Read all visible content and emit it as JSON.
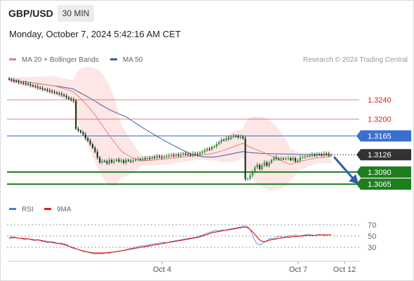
{
  "header": {
    "symbol": "GBP/USD",
    "timeframe": "30 MIN",
    "datetime": "Monday, October 7, 2024 5:42:16 AM CET"
  },
  "legend": {
    "ma20_label": "MA 20 + Bollinger Bands",
    "ma50_label": "MA 50",
    "rsi_label": "RSI",
    "rsi_ma_label": "9MA",
    "credit": "Research © 2024 Trading Central"
  },
  "colors": {
    "ma20": "#e88080",
    "ma50": "#3f5f9f",
    "bollinger_fill": "#fde3e3",
    "candle_up": "#3a8a3a",
    "candle_down": "#1a3a1a",
    "resistance": "#d82020",
    "support": "#1e7e1e",
    "pivot": "#3a6fd0",
    "current": "#333333",
    "forecast_arrow": "#2e5fa8",
    "rsi": "#4a7fd8",
    "rsi_ma": "#d82020"
  },
  "chart_data": [
    {
      "type": "candlestick",
      "title": "GBP/USD 30 MIN",
      "x_ticks": [
        "Oct 4",
        "Oct 7",
        "Oct 12"
      ],
      "ylim": [
        1.3036,
        1.3307
      ],
      "grid": false,
      "legend_position": "top-left",
      "levels": [
        {
          "label": "1.3240",
          "value": 1.324,
          "kind": "resistance"
        },
        {
          "label": "1.3200",
          "value": 1.32,
          "kind": "resistance"
        },
        {
          "label": "1.3165",
          "value": 1.3165,
          "kind": "pivot"
        },
        {
          "label": "1.3126",
          "value": 1.3126,
          "kind": "current"
        },
        {
          "label": "1.3090",
          "value": 1.309,
          "kind": "support"
        },
        {
          "label": "1.3065",
          "value": 1.3065,
          "kind": "support"
        }
      ],
      "forecast": {
        "from": 1.3126,
        "to": 1.3068,
        "direction": "down"
      },
      "closes": [
        1.3282,
        1.328,
        1.3279,
        1.3278,
        1.3276,
        1.3275,
        1.3274,
        1.3273,
        1.3272,
        1.327,
        1.3268,
        1.3267,
        1.3265,
        1.3264,
        1.3262,
        1.3261,
        1.3259,
        1.3258,
        1.3256,
        1.3255,
        1.3253,
        1.3252,
        1.325,
        1.3248,
        1.3245,
        1.3242,
        1.324,
        1.3238,
        1.318,
        1.3176,
        1.3172,
        1.3168,
        1.316,
        1.3155,
        1.3148,
        1.314,
        1.3132,
        1.312,
        1.311,
        1.3113,
        1.3112,
        1.3108,
        1.3115,
        1.311,
        1.3113,
        1.3116,
        1.3112,
        1.3114,
        1.3109,
        1.3115,
        1.3113,
        1.3112,
        1.3114,
        1.3116,
        1.3117,
        1.3115,
        1.3118,
        1.3117,
        1.3119,
        1.3118,
        1.3121,
        1.312,
        1.3123,
        1.3121,
        1.312,
        1.3122,
        1.3123,
        1.3124,
        1.3125,
        1.3124,
        1.3126,
        1.3124,
        1.3126,
        1.3128,
        1.3127,
        1.3126,
        1.3125,
        1.3128,
        1.3127,
        1.3126,
        1.313,
        1.3132,
        1.3135,
        1.3138,
        1.3137,
        1.3142,
        1.3143,
        1.3148,
        1.3152,
        1.3157,
        1.3156,
        1.316,
        1.3159,
        1.3163,
        1.3165,
        1.3164,
        1.3162,
        1.3163,
        1.316,
        1.3075,
        1.3076,
        1.3083,
        1.309,
        1.31,
        1.3105,
        1.3096,
        1.3104,
        1.311,
        1.3103,
        1.3109,
        1.3115,
        1.312,
        1.3118,
        1.3116,
        1.3118,
        1.3117,
        1.3118,
        1.3119,
        1.3115,
        1.3119,
        1.3112,
        1.3114,
        1.312,
        1.3121,
        1.3122,
        1.3123,
        1.3124,
        1.3126,
        1.3124,
        1.3127,
        1.3126,
        1.3125,
        1.3128,
        1.3127,
        1.3125,
        1.3126
      ]
    },
    {
      "type": "line",
      "title": "RSI",
      "y_ticks": [
        70,
        50,
        30
      ],
      "ylim": [
        10,
        80
      ],
      "series": [
        {
          "name": "RSI",
          "values": [
            48,
            49,
            47,
            46,
            45,
            44,
            45,
            43,
            42,
            44,
            41,
            40,
            38,
            40,
            39,
            37,
            38,
            36,
            35,
            30,
            28,
            27,
            25,
            24,
            22,
            20,
            19,
            18,
            19,
            18,
            20,
            19,
            21,
            22,
            23,
            24,
            25,
            27,
            28,
            30,
            31,
            33,
            32,
            34,
            35,
            36,
            37,
            38,
            39,
            38,
            40,
            41,
            42,
            43,
            44,
            45,
            46,
            47,
            48,
            50,
            52,
            54,
            56,
            58,
            60,
            59,
            61,
            60,
            62,
            63,
            64,
            65,
            66,
            68,
            67,
            60,
            45,
            36,
            34,
            38,
            42,
            46,
            45,
            48,
            50,
            47,
            49,
            51,
            50,
            52,
            49,
            51,
            52,
            53,
            52,
            51,
            53,
            52,
            51,
            52,
            52
          ]
        },
        {
          "name": "9MA",
          "values": [
            46,
            47,
            47,
            46,
            46,
            45,
            45,
            44,
            43,
            43,
            42,
            41,
            40,
            39,
            38,
            37,
            36,
            35,
            33,
            31,
            29,
            27,
            25,
            23,
            22,
            21,
            20,
            20,
            20,
            20,
            20,
            21,
            21,
            22,
            23,
            24,
            25,
            26,
            27,
            28,
            29,
            30,
            31,
            32,
            33,
            34,
            35,
            36,
            37,
            38,
            39,
            40,
            41,
            42,
            43,
            44,
            45,
            46,
            47,
            48,
            50,
            52,
            54,
            56,
            57,
            58,
            59,
            60,
            61,
            62,
            63,
            64,
            65,
            66,
            65,
            61,
            55,
            48,
            42,
            40,
            41,
            43,
            44,
            45,
            46,
            47,
            48,
            48,
            49,
            49,
            50,
            50,
            51,
            51,
            51,
            51,
            52,
            52,
            52,
            52,
            52
          ]
        }
      ]
    }
  ]
}
